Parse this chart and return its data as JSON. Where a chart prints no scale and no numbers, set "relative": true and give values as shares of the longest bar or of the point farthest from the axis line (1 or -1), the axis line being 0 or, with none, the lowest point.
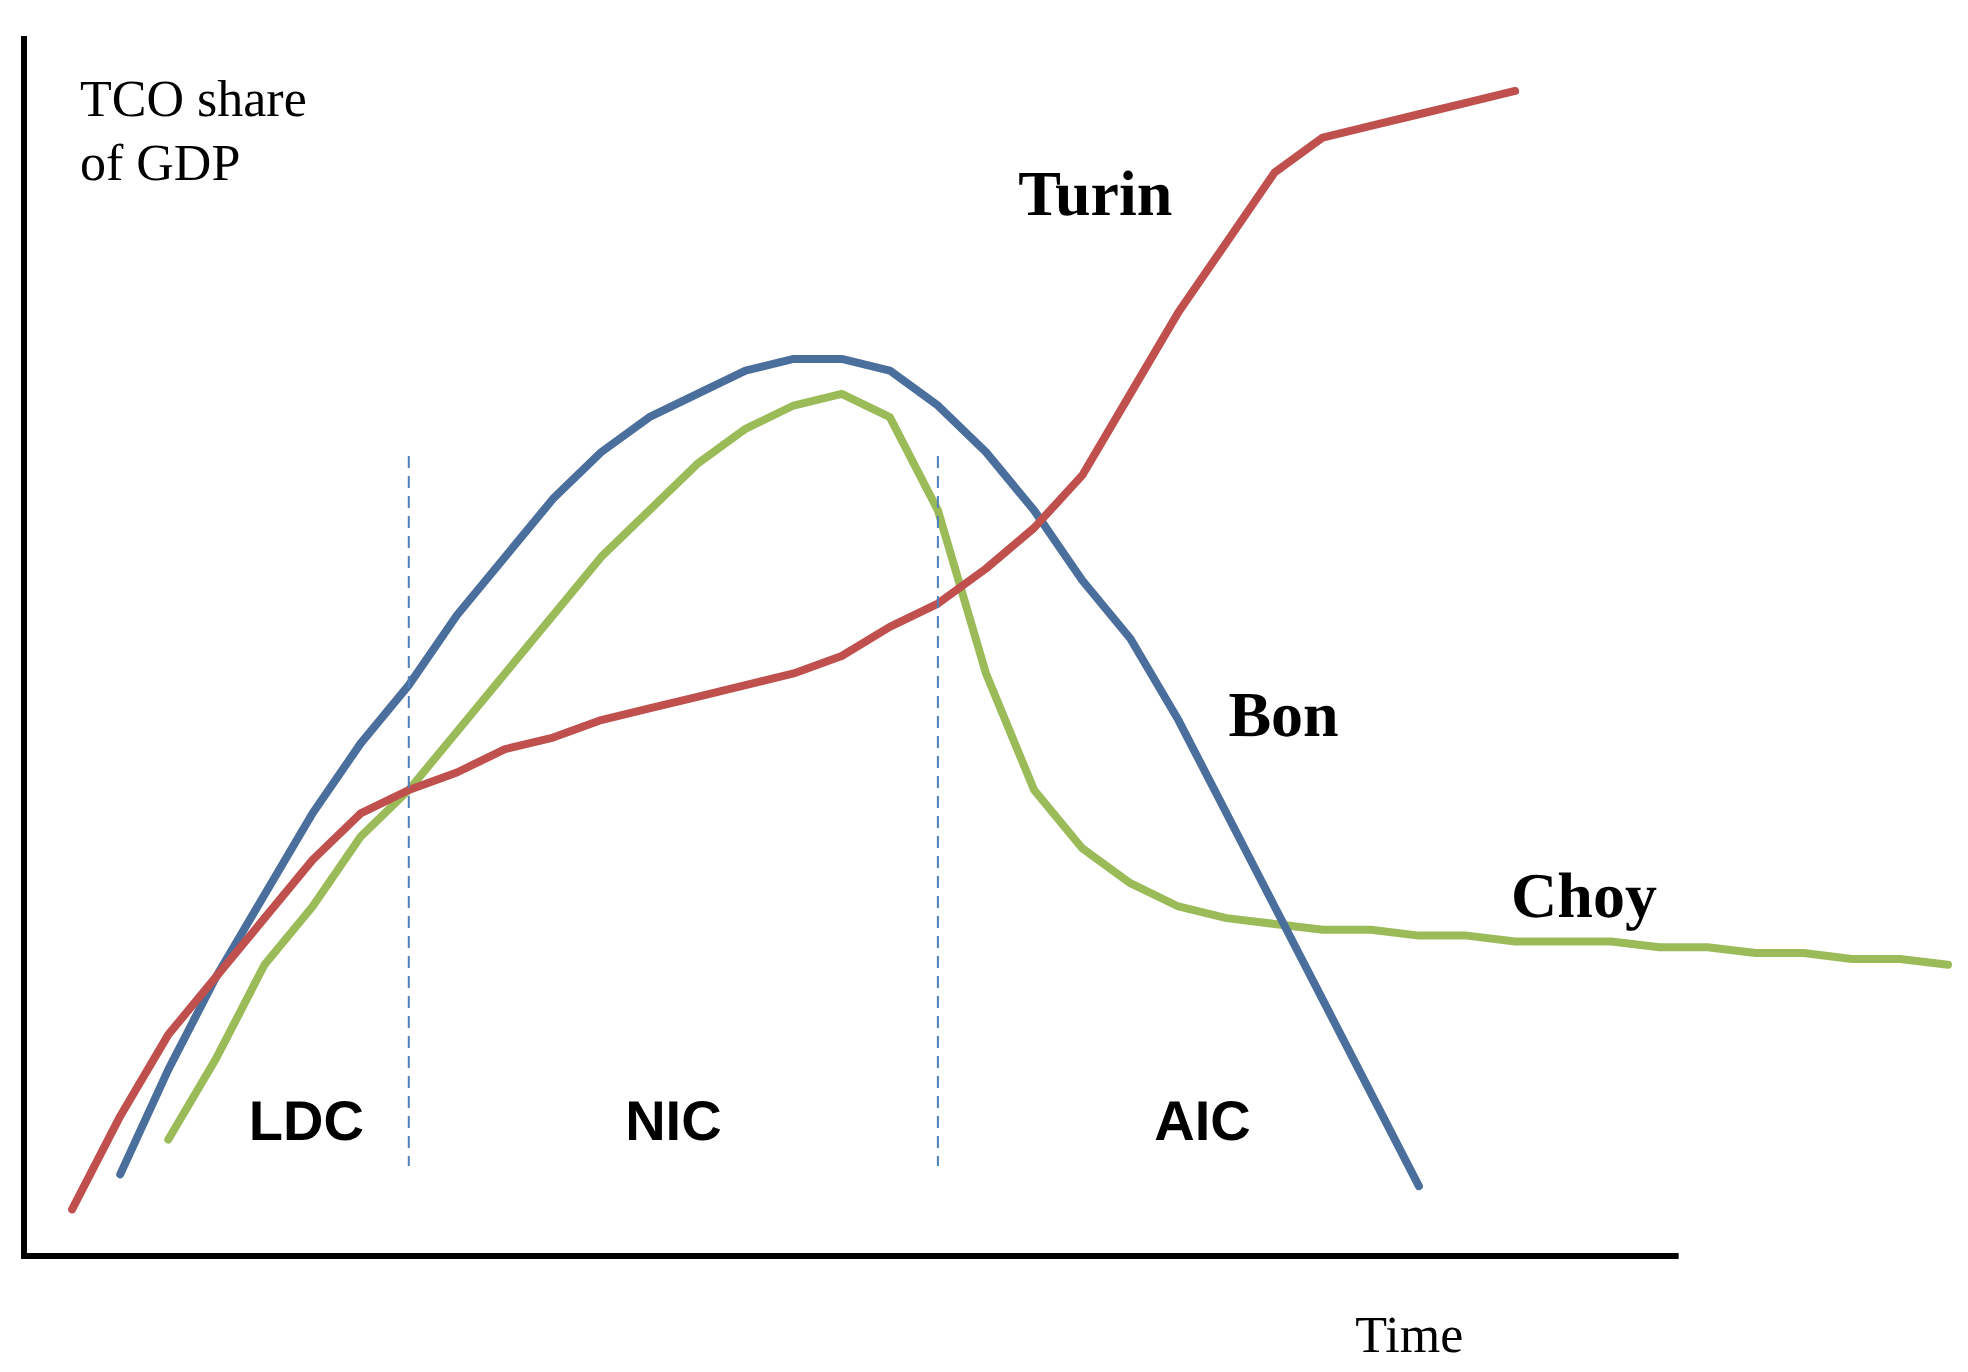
{
  "chart_data": {
    "type": "line",
    "relative": true,
    "xlabel": "Time",
    "ylabel": "TCO share\nof GDP",
    "legend": false,
    "marker": "none",
    "line_style": "solid",
    "categories": [
      null,
      null,
      null,
      null,
      null,
      null,
      null,
      null,
      null,
      null,
      null,
      null,
      null,
      null,
      null,
      null,
      null,
      null,
      null,
      null,
      null,
      null,
      null,
      null,
      null,
      null,
      null,
      null,
      null,
      null,
      null,
      null,
      null,
      null,
      null,
      null,
      null,
      null,
      null,
      null,
      null
    ],
    "series": [
      {
        "name": "Turin",
        "color": "#c0504d",
        "values": [
          null,
          0.04,
          0.12,
          0.19,
          0.24,
          0.29,
          0.34,
          0.38,
          0.4,
          0.415,
          0.435,
          0.445,
          0.46,
          0.47,
          0.48,
          0.49,
          0.5,
          0.515,
          0.54,
          0.56,
          0.59,
          0.625,
          0.67,
          0.74,
          0.81,
          0.87,
          0.93,
          0.96,
          0.97,
          0.98,
          0.99,
          1.0,
          null,
          null,
          null,
          null,
          null,
          null,
          null,
          null,
          null
        ]
      },
      {
        "name": "Bon",
        "color": "#4a6f9c",
        "values": [
          null,
          null,
          0.07,
          0.16,
          0.24,
          0.31,
          0.38,
          0.44,
          0.49,
          0.55,
          0.6,
          0.65,
          0.69,
          0.72,
          0.74,
          0.76,
          0.77,
          0.77,
          0.76,
          0.73,
          0.69,
          0.64,
          0.58,
          0.53,
          0.46,
          0.38,
          0.3,
          0.22,
          0.14,
          0.06,
          null,
          null,
          null,
          null,
          null,
          null,
          null,
          null,
          null,
          null,
          null
        ]
      },
      {
        "name": "Choy",
        "color": "#9bbb59",
        "values": [
          null,
          null,
          null,
          0.1,
          0.17,
          0.25,
          0.3,
          0.36,
          0.4,
          0.45,
          0.5,
          0.55,
          0.6,
          0.64,
          0.68,
          0.71,
          0.73,
          0.74,
          0.72,
          0.64,
          0.5,
          0.4,
          0.35,
          0.32,
          0.3,
          0.29,
          0.285,
          0.28,
          0.28,
          0.275,
          0.275,
          0.27,
          0.27,
          0.27,
          0.265,
          0.265,
          0.26,
          0.26,
          0.255,
          0.255,
          0.25
        ]
      }
    ],
    "annotations": [
      "LDC",
      "NIC",
      "AIC"
    ]
  }
}
